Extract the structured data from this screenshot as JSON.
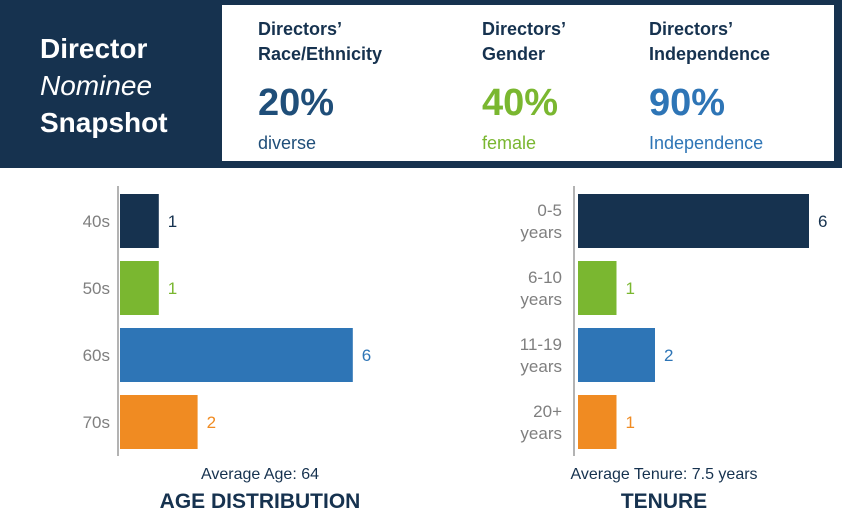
{
  "header": {
    "title_line1": "Director",
    "title_line2": "Nominee",
    "title_line3": "Snapshot"
  },
  "stats": [
    {
      "label_line1": "Directors’",
      "label_line2": "Race/Ethnicity",
      "value": "20%",
      "desc": "diverse",
      "color": "#1f4e79"
    },
    {
      "label_line1": "Directors’",
      "label_line2": "Gender",
      "value": "40%",
      "desc": "female",
      "color": "#7ab730"
    },
    {
      "label_line1": "Directors’",
      "label_line2": "Independence",
      "value": "90%",
      "desc": "Independence",
      "color": "#2e75b6"
    }
  ],
  "colors": {
    "navy": "#16324f",
    "green": "#7ab730",
    "blue": "#2e75b6",
    "orange": "#f08b22",
    "axis": "#b3b3b3",
    "tick_text": "#7f7f7f"
  },
  "chart_data": [
    {
      "type": "bar",
      "orientation": "horizontal",
      "title": "AGE DISTRIBUTION",
      "caption": "Average Age: 64",
      "categories": [
        [
          "40s"
        ],
        [
          "50s"
        ],
        [
          "60s"
        ],
        [
          "70s"
        ]
      ],
      "values": [
        1,
        1,
        6,
        2
      ],
      "bar_colors": [
        "#16324f",
        "#7ab730",
        "#2e75b6",
        "#f08b22"
      ],
      "xlim": [
        0,
        6
      ]
    },
    {
      "type": "bar",
      "orientation": "horizontal",
      "title": "TENURE",
      "caption": "Average Tenure: 7.5 years",
      "categories": [
        [
          "0-5",
          "years"
        ],
        [
          "6-10",
          "years"
        ],
        [
          "11-19",
          "years"
        ],
        [
          "20+",
          "years"
        ]
      ],
      "values": [
        6,
        1,
        2,
        1
      ],
      "bar_colors": [
        "#16324f",
        "#7ab730",
        "#2e75b6",
        "#f08b22"
      ],
      "xlim": [
        0,
        6
      ]
    }
  ]
}
